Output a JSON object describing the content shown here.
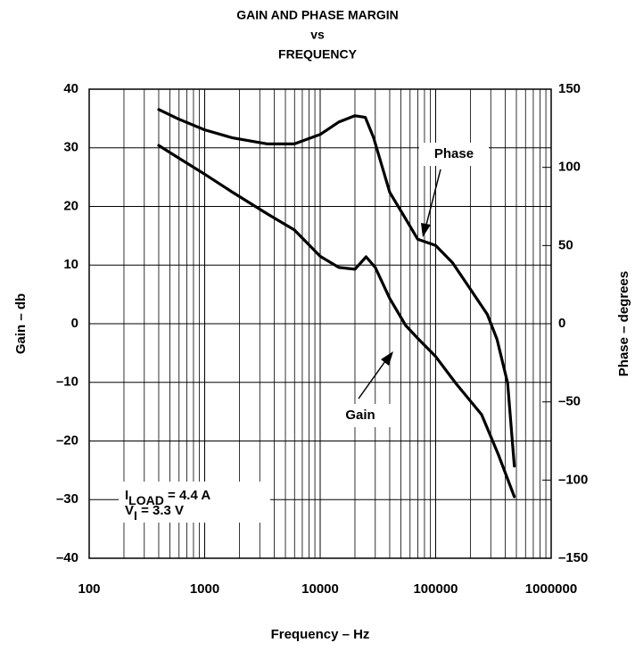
{
  "chart_data": {
    "type": "line",
    "title_lines": [
      "GAIN AND PHASE MARGIN",
      "vs",
      "FREQUENCY"
    ],
    "x_label": "Frequency – Hz",
    "y_label": "Gain – db",
    "y2_label": "Phase – degrees",
    "x_scale": "log",
    "grid": true,
    "xlim": [
      100,
      1000000
    ],
    "xticks": [
      100,
      1000,
      10000,
      100000,
      1000000
    ],
    "ylim": [
      -40,
      40
    ],
    "yticks": [
      {
        "value": -40,
        "label": "–40"
      },
      {
        "value": -30,
        "label": "–30"
      },
      {
        "value": -20,
        "label": "–20"
      },
      {
        "value": -10,
        "label": "–10"
      },
      0,
      10,
      20,
      30,
      40
    ],
    "y2lim": [
      -150,
      150
    ],
    "y2ticks": [
      {
        "value": -150,
        "label": "–150"
      },
      {
        "value": -100,
        "label": "–100"
      },
      {
        "value": -50,
        "label": "–50"
      },
      0,
      50,
      100,
      150
    ],
    "series": [
      {
        "name": "Gain",
        "color": "#000000",
        "axis": "y",
        "x": [
          400,
          590,
          1000,
          1720,
          3500,
          5970,
          10000,
          14500,
          20000,
          25000,
          30000,
          40000,
          55000,
          70000,
          100000,
          150000,
          250000,
          350000,
          480000
        ],
        "values": [
          30.4,
          28.3,
          25.5,
          22.5,
          18.7,
          16.0,
          11.5,
          9.6,
          9.3,
          11.4,
          9.6,
          4.3,
          -0.3,
          -2.5,
          -5.6,
          -10.2,
          -15.5,
          -22.4,
          -29.5
        ]
      },
      {
        "name": "Phase",
        "color": "#000000",
        "axis": "y2",
        "x": [
          400,
          590,
          1000,
          1720,
          3500,
          5970,
          10000,
          14500,
          20000,
          24600,
          29000,
          40000,
          55000,
          70000,
          100000,
          140000,
          200000,
          280000,
          340000,
          420000,
          480000
        ],
        "values": [
          137,
          131,
          124,
          119,
          115,
          115,
          121,
          129,
          133,
          132,
          119,
          84,
          67,
          54,
          50,
          39,
          22,
          6,
          -10,
          -38,
          -91
        ]
      }
    ],
    "annotations": {
      "load": [
        "I",
        "LOAD",
        " = 4.4  A"
      ],
      "vin": [
        "V",
        "I",
        " = 3.3 V"
      ]
    }
  }
}
